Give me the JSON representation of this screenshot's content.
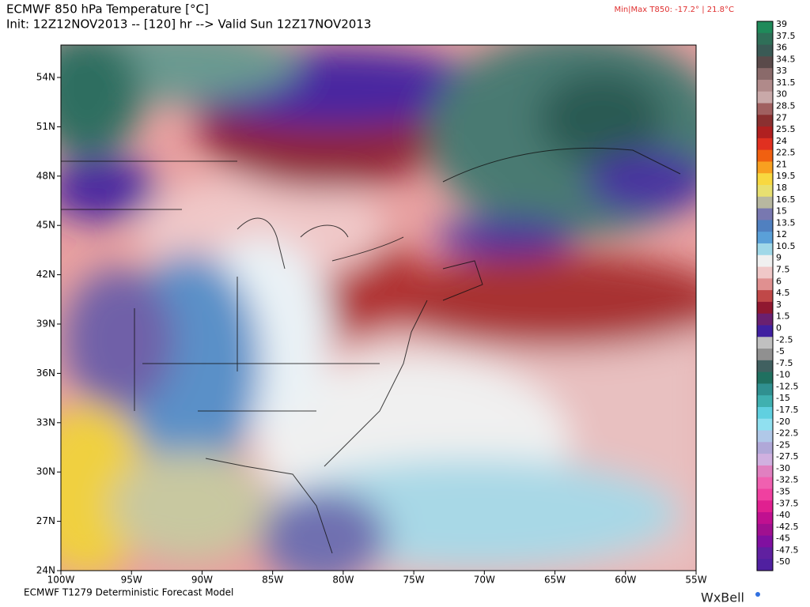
{
  "header": {
    "title": "ECMWF 850 hPa Temperature [°C]",
    "subtitle": "Init: 12Z12NOV2013 -- [120] hr --> Valid Sun 12Z17NOV2013",
    "minmax": "Min|Max T850: -17.2° |  21.8°C"
  },
  "map": {
    "lat_labels": [
      "54N",
      "51N",
      "48N",
      "45N",
      "42N",
      "39N",
      "36N",
      "33N",
      "30N",
      "27N",
      "24N"
    ],
    "lon_labels": [
      "100W",
      "95W",
      "90W",
      "85W",
      "80W",
      "75W",
      "70W",
      "65W",
      "60W",
      "55W"
    ]
  },
  "colorbar": {
    "levels": [
      39,
      37.5,
      36,
      34.5,
      33,
      31.5,
      30,
      28.5,
      27,
      25.5,
      24,
      22.5,
      21,
      19.5,
      18,
      16.5,
      15,
      13.5,
      12,
      10.5,
      9,
      7.5,
      6,
      4.5,
      3,
      1.5,
      0,
      -2.5,
      -5,
      -7.5,
      -10,
      -12.5,
      -15,
      -17.5,
      -20,
      -22.5,
      -25,
      -27.5,
      -30,
      -32.5,
      -35,
      -37.5,
      -40,
      -42.5,
      -45,
      -47.5,
      -50
    ],
    "colors": [
      "#1f8a5a",
      "#2f6f58",
      "#3a5a55",
      "#5a4a4a",
      "#8a6a6a",
      "#b08a8a",
      "#c9a9a9",
      "#a06060",
      "#8a3030",
      "#b02020",
      "#e03020",
      "#f06010",
      "#f8a020",
      "#f8d840",
      "#e8e070",
      "#b8b8a0",
      "#7878b0",
      "#5080c0",
      "#5aa0d8",
      "#a0d8e8",
      "#f0f0f0",
      "#f0c8c8",
      "#e09090",
      "#c04848",
      "#901830",
      "#6a2070",
      "#4020a0",
      "#c0c0c0",
      "#909090",
      "#406060",
      "#207060",
      "#309090",
      "#40b0b0",
      "#60d0e0",
      "#90e0f0",
      "#b0c8e8",
      "#b0a8d8",
      "#d0b0e0",
      "#e080c0",
      "#f060b0",
      "#f040a0",
      "#e02090",
      "#c01090",
      "#a01090",
      "#8010a0",
      "#6020a0",
      "#5020a0"
    ]
  },
  "footer": {
    "model": "ECMWF T1279 Deterministic Forecast Model",
    "logo": "WxBell"
  }
}
